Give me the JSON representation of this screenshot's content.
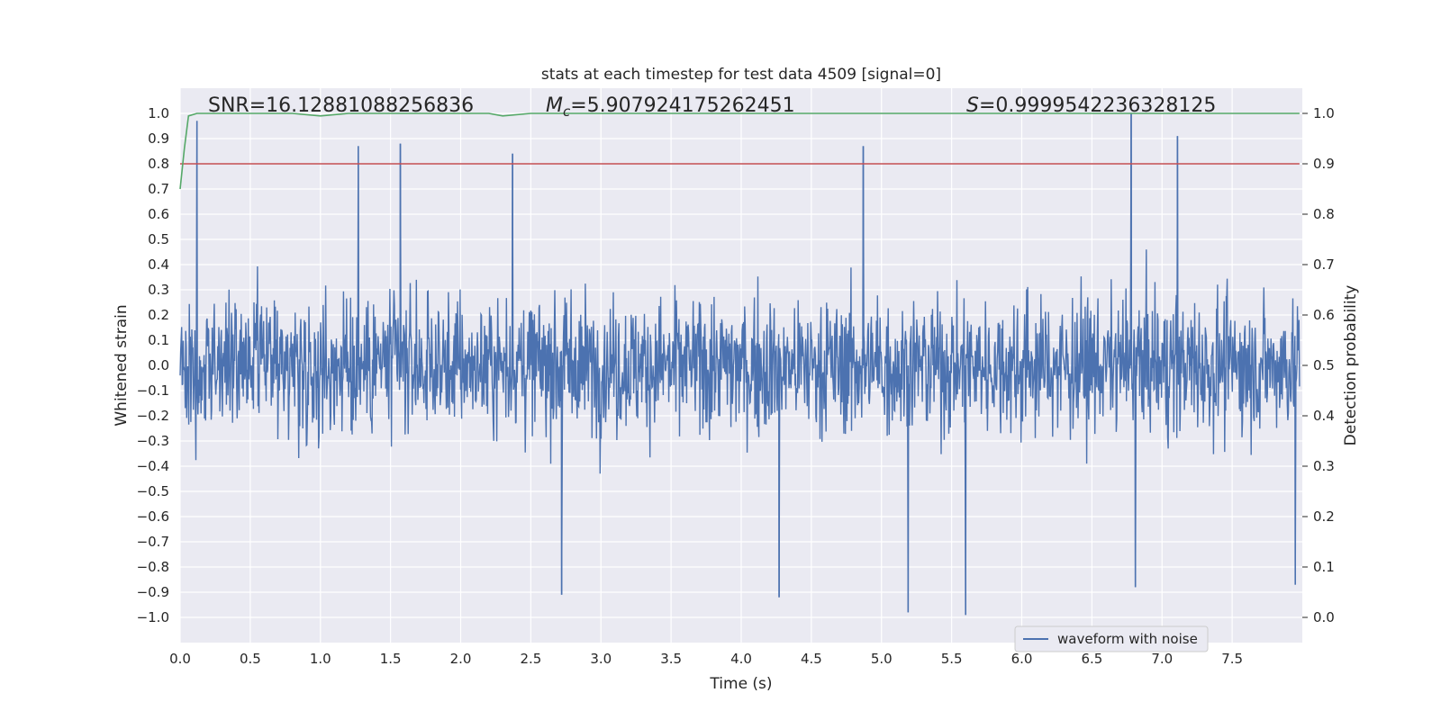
{
  "chart_data": {
    "type": "line",
    "title": "stats at each timestep for test data 4509 [signal=0]",
    "xlabel": "Time (s)",
    "ylabel": "Whitened strain",
    "y2label": "Detection probability",
    "xlim": [
      0.0,
      8.0
    ],
    "ylim": [
      -1.1,
      1.1
    ],
    "y2lim": [
      -0.05,
      1.05
    ],
    "x_ticks": [
      "0.0",
      "0.5",
      "1.0",
      "1.5",
      "2.0",
      "2.5",
      "3.0",
      "3.5",
      "4.0",
      "4.5",
      "5.0",
      "5.5",
      "6.0",
      "6.5",
      "7.0",
      "7.5"
    ],
    "y_ticks": [
      "1.0",
      "0.9",
      "0.8",
      "0.7",
      "0.6",
      "0.5",
      "0.4",
      "0.3",
      "0.2",
      "0.1",
      "0.0",
      "−0.1",
      "−0.2",
      "−0.3",
      "−0.4",
      "−0.5",
      "−0.6",
      "−0.7",
      "−0.8",
      "−0.9",
      "−1.0"
    ],
    "y2_ticks": [
      "1.0",
      "0.9",
      "0.8",
      "0.7",
      "0.6",
      "0.5",
      "0.4",
      "0.3",
      "0.2",
      "0.1",
      "0.0"
    ],
    "grid": true,
    "legend_placement": "lower-right",
    "stats": {
      "snr": "SNR=16.12881088256836",
      "mc_symbol": "M",
      "mc_subscript": "c",
      "mc_value": "=5.907924175262451",
      "s_symbol": "S",
      "s_value": "=0.9999542236328125"
    },
    "series": [
      {
        "name": "waveform with noise",
        "color": "#4c72b0",
        "axis": "left",
        "x_range": [
          0.0,
          7.98
        ],
        "notable_peaks": [
          {
            "x": 0.12,
            "y": 0.97
          },
          {
            "x": 1.27,
            "y": 0.87
          },
          {
            "x": 1.57,
            "y": 0.88
          },
          {
            "x": 2.37,
            "y": 0.84
          },
          {
            "x": 4.87,
            "y": 0.87
          },
          {
            "x": 6.78,
            "y": 1.0
          },
          {
            "x": 7.11,
            "y": 0.91
          }
        ],
        "notable_troughs": [
          {
            "x": 2.72,
            "y": -0.91
          },
          {
            "x": 4.27,
            "y": -0.92
          },
          {
            "x": 5.19,
            "y": -0.98
          },
          {
            "x": 5.6,
            "y": -0.99
          },
          {
            "x": 6.81,
            "y": -0.88
          },
          {
            "x": 7.95,
            "y": -0.87
          }
        ]
      },
      {
        "color": "#55a868",
        "axis": "right",
        "x": [
          0.0,
          0.03,
          0.06,
          0.12,
          0.3,
          0.8,
          1.0,
          1.2,
          2.0,
          2.2,
          2.3,
          2.5,
          3.0,
          4.0,
          5.0,
          6.0,
          7.0,
          7.98
        ],
        "values": [
          0.85,
          0.93,
          0.995,
          1.0,
          1.0,
          1.0,
          0.995,
          1.0,
          1.0,
          1.0,
          0.995,
          1.0,
          1.0,
          1.0,
          1.0,
          1.0,
          1.0,
          1.0
        ]
      },
      {
        "color": "#c44e52",
        "axis": "right",
        "x": [
          0.0,
          7.98
        ],
        "values": [
          0.9,
          0.9
        ]
      }
    ]
  }
}
